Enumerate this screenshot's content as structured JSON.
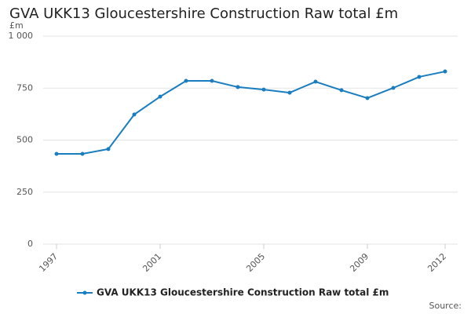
{
  "chart_data": {
    "type": "line",
    "title": "GVA UKK13 Gloucestershire Construction Raw total £m",
    "y_unit": "£m",
    "source": "Source:",
    "x": [
      1997,
      1998,
      1999,
      2000,
      2001,
      2002,
      2003,
      2004,
      2005,
      2006,
      2007,
      2008,
      2009,
      2010,
      2011,
      2012
    ],
    "series": [
      {
        "name": "GVA UKK13 Gloucestershire Construction Raw total £m",
        "color": "#1a7dc0",
        "values": [
          434,
          434,
          457,
          623,
          709,
          785,
          785,
          755,
          743,
          728,
          781,
          740,
          702,
          751,
          804,
          830
        ]
      }
    ],
    "xlim": [
      1997,
      2012
    ],
    "xticks": [
      1997,
      2001,
      2005,
      2009,
      2012
    ],
    "ylim": [
      0,
      1000
    ],
    "yticks": [
      0,
      250,
      500,
      750,
      {
        "value": 1000,
        "label": "1 000"
      }
    ],
    "grid": true
  }
}
